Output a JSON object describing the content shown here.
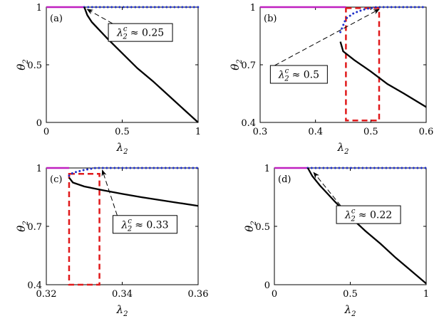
{
  "chart_data": [
    {
      "type": "line",
      "panel_label": "(a)",
      "xlabel": "λ",
      "xlabel_sub": "2",
      "ylabel": "θ",
      "ylabel_sub": "2",
      "xlim": [
        0,
        1
      ],
      "ylim": [
        0,
        1
      ],
      "xticks": [
        0,
        0.5,
        1
      ],
      "xtick_labels": [
        "0",
        "0.5",
        "1"
      ],
      "yticks": [
        0,
        0.5,
        1
      ],
      "ytick_labels": [
        "0",
        "0.5",
        "1"
      ],
      "grid": false,
      "series": [
        {
          "style": "solid",
          "color": "#c020c0",
          "points": [
            [
              0,
              1
            ],
            [
              0.25,
              1
            ]
          ]
        },
        {
          "style": "dotted",
          "color": "#2030c8",
          "points": [
            [
              0.25,
              1
            ],
            [
              1,
              1
            ]
          ]
        },
        {
          "style": "solid",
          "color": "#000000",
          "points": [
            [
              0.25,
              1
            ],
            [
              0.27,
              0.93
            ],
            [
              0.3,
              0.87
            ],
            [
              0.35,
              0.8
            ],
            [
              0.4,
              0.73
            ],
            [
              0.5,
              0.6
            ],
            [
              0.6,
              0.47
            ],
            [
              0.7,
              0.36
            ],
            [
              0.8,
              0.24
            ],
            [
              0.9,
              0.12
            ],
            [
              1,
              0
            ]
          ]
        }
      ],
      "annotation": {
        "text_lhs": "λ",
        "text_sub": "2",
        "text_sup": "c",
        "text_rhs": "≈ 0.25",
        "arrow_to": [
          0.25,
          1
        ],
        "box_at": [
          0.62,
          0.78
        ]
      },
      "dashed_box": null
    },
    {
      "type": "line",
      "panel_label": "(b)",
      "xlabel": "λ",
      "xlabel_sub": "2",
      "ylabel": "θ",
      "ylabel_sub": "2",
      "xlim": [
        0.3,
        0.6
      ],
      "ylim": [
        0.4,
        1
      ],
      "xticks": [
        0.3,
        0.4,
        0.5,
        0.6
      ],
      "xtick_labels": [
        "0.3",
        "0.4",
        "0.5",
        "0.6"
      ],
      "yticks": [
        0.4,
        0.7,
        1
      ],
      "ytick_labels": [
        "0.4",
        "0.7",
        "1"
      ],
      "grid": false,
      "series": [
        {
          "style": "solid",
          "color": "#c020c0",
          "points": [
            [
              0.3,
              1
            ],
            [
              0.455,
              1
            ]
          ]
        },
        {
          "style": "dotted",
          "color": "#2030c8",
          "points": [
            [
              0.445,
              0.87
            ],
            [
              0.455,
              0.94
            ],
            [
              0.47,
              0.97
            ],
            [
              0.49,
              0.99
            ],
            [
              0.51,
              1
            ],
            [
              0.6,
              1
            ]
          ]
        },
        {
          "style": "solid",
          "color": "#000000",
          "points": [
            [
              0.445,
              0.82
            ],
            [
              0.45,
              0.77
            ],
            [
              0.47,
              0.725
            ],
            [
              0.5,
              0.665
            ],
            [
              0.53,
              0.6
            ],
            [
              0.56,
              0.55
            ],
            [
              0.6,
              0.48
            ]
          ]
        }
      ],
      "annotation": {
        "text_lhs": "λ",
        "text_sub": "2",
        "text_sup": "c",
        "text_rhs": "≈ 0.5",
        "arrow_to": [
          0.51,
          1
        ],
        "box_at": [
          0.37,
          0.65
        ]
      },
      "dashed_box": {
        "x0": 0.455,
        "x1": 0.515,
        "y0": 0.41,
        "y1": 0.995,
        "color": "#e0191b"
      }
    },
    {
      "type": "line",
      "panel_label": "(c)",
      "xlabel": "λ",
      "xlabel_sub": "2",
      "ylabel": "θ",
      "ylabel_sub": "2",
      "xlim": [
        0.32,
        0.36
      ],
      "ylim": [
        0.4,
        1
      ],
      "xticks": [
        0.32,
        0.34,
        0.36
      ],
      "xtick_labels": [
        "0.32",
        "0.34",
        "0.36"
      ],
      "yticks": [
        0.4,
        0.7,
        1
      ],
      "ytick_labels": [
        "0.4",
        "0.7",
        "1"
      ],
      "grid": false,
      "series": [
        {
          "style": "solid",
          "color": "#c020c0",
          "points": [
            [
              0.32,
              1
            ],
            [
              0.326,
              1
            ]
          ]
        },
        {
          "style": "dotted",
          "color": "#2030c8",
          "points": [
            [
              0.326,
              0.96
            ],
            [
              0.327,
              0.975
            ],
            [
              0.33,
              0.99
            ],
            [
              0.333,
              1
            ],
            [
              0.36,
              1
            ]
          ]
        },
        {
          "style": "solid",
          "color": "#000000",
          "points": [
            [
              0.326,
              0.95
            ],
            [
              0.327,
              0.925
            ],
            [
              0.33,
              0.905
            ],
            [
              0.335,
              0.885
            ],
            [
              0.34,
              0.867
            ],
            [
              0.345,
              0.85
            ],
            [
              0.35,
              0.835
            ],
            [
              0.355,
              0.82
            ],
            [
              0.36,
              0.805
            ]
          ]
        }
      ],
      "annotation": {
        "text_lhs": "λ",
        "text_sub": "2",
        "text_sup": "c",
        "text_rhs": "≈ 0.33",
        "arrow_to": [
          0.334,
          1
        ],
        "box_at": [
          0.346,
          0.71
        ]
      },
      "dashed_box": {
        "x0": 0.326,
        "x1": 0.334,
        "y0": 0.4,
        "y1": 0.97,
        "color": "#e0191b"
      }
    },
    {
      "type": "line",
      "panel_label": "(d)",
      "xlabel": "λ",
      "xlabel_sub": "2",
      "ylabel": "θ",
      "ylabel_sub": "2",
      "xlim": [
        0,
        1
      ],
      "ylim": [
        0,
        1
      ],
      "xticks": [
        0,
        0.5,
        1
      ],
      "xtick_labels": [
        "0",
        "0.5",
        "1"
      ],
      "yticks": [
        0,
        0.5,
        1
      ],
      "ytick_labels": [
        "0",
        "0.5",
        "1"
      ],
      "grid": false,
      "series": [
        {
          "style": "solid",
          "color": "#c020c0",
          "points": [
            [
              0,
              1
            ],
            [
              0.22,
              1
            ]
          ]
        },
        {
          "style": "dotted",
          "color": "#2030c8",
          "points": [
            [
              0.22,
              1
            ],
            [
              1,
              1
            ]
          ]
        },
        {
          "style": "solid",
          "color": "#000000",
          "points": [
            [
              0.22,
              1
            ],
            [
              0.25,
              0.93
            ],
            [
              0.3,
              0.85
            ],
            [
              0.35,
              0.78
            ],
            [
              0.4,
              0.71
            ],
            [
              0.5,
              0.58
            ],
            [
              0.6,
              0.46
            ],
            [
              0.7,
              0.35
            ],
            [
              0.8,
              0.23
            ],
            [
              0.9,
              0.12
            ],
            [
              1,
              0.01
            ]
          ]
        }
      ],
      "annotation": {
        "text_lhs": "λ",
        "text_sub": "2",
        "text_sup": "c",
        "text_rhs": "≈ 0.22",
        "arrow_to": [
          0.24,
          0.98
        ],
        "box_at": [
          0.62,
          0.6
        ]
      },
      "dashed_box": null
    }
  ]
}
